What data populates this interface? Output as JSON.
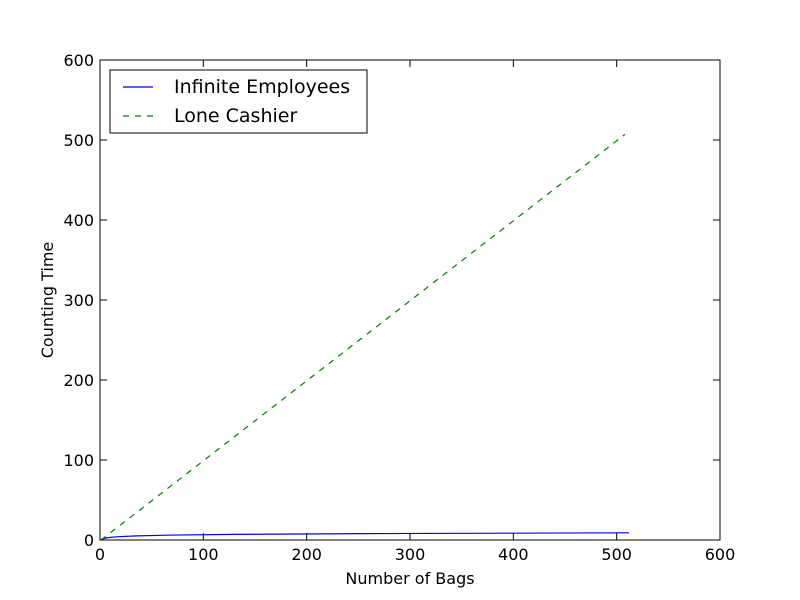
{
  "chart_data": {
    "type": "line",
    "title": "",
    "xlabel": "Number of Bags",
    "ylabel": "Counting Time",
    "xlim": [
      0,
      600
    ],
    "ylim": [
      0,
      600
    ],
    "xticks": [
      "0",
      "100",
      "200",
      "300",
      "400",
      "500",
      "600"
    ],
    "yticks": [
      "0",
      "100",
      "200",
      "300",
      "400",
      "500",
      "600"
    ],
    "grid": false,
    "legend_position": "top-left",
    "series": [
      {
        "name": "Infinite Employees",
        "color": "#0000ff",
        "style": "solid",
        "x": [
          1,
          2,
          4,
          8,
          16,
          32,
          64,
          128,
          256,
          512
        ],
        "y": [
          0,
          1,
          2,
          3,
          4,
          5,
          6,
          7,
          8,
          9
        ]
      },
      {
        "name": "Lone Cashier",
        "color": "#008000",
        "style": "dashed",
        "x": [
          1,
          2,
          4,
          8,
          16,
          32,
          64,
          128,
          256,
          508
        ],
        "y": [
          0,
          1,
          3,
          7,
          15,
          31,
          63,
          127,
          255,
          507
        ]
      }
    ]
  }
}
